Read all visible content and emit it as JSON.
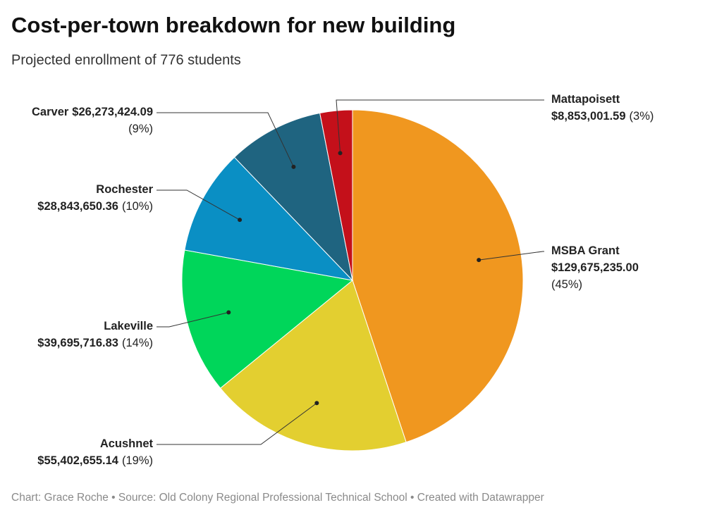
{
  "chart_data": {
    "type": "pie",
    "title": "Cost-per-town breakdown for new building",
    "subtitle": "Projected enrollment of 776 students",
    "footer": "Chart: Grace Roche • Source: Old Colony Regional Professional Technical School • Created with Datawrapper",
    "categories": [
      "MSBA Grant",
      "Acushnet",
      "Lakeville",
      "Rochester",
      "Carver",
      "Mattapoisett"
    ],
    "values": [
      129675235.0,
      55402655.14,
      39695716.83,
      28843650.36,
      26273424.09,
      8853001.59
    ],
    "value_labels": [
      "$129,675,235.00",
      "$55,402,655.14",
      "$39,695,716.83",
      "$28,843,650.36",
      "$26,273,424.09",
      "$8,853,001.59"
    ],
    "percent_labels": [
      "(45%)",
      "(19%)",
      "(14%)",
      "(10%)",
      "(9%)",
      "(3%)"
    ],
    "colors": [
      "#f0971f",
      "#e3cf30",
      "#00d65a",
      "#0a8fc4",
      "#1f6480",
      "#c4101a"
    ]
  }
}
